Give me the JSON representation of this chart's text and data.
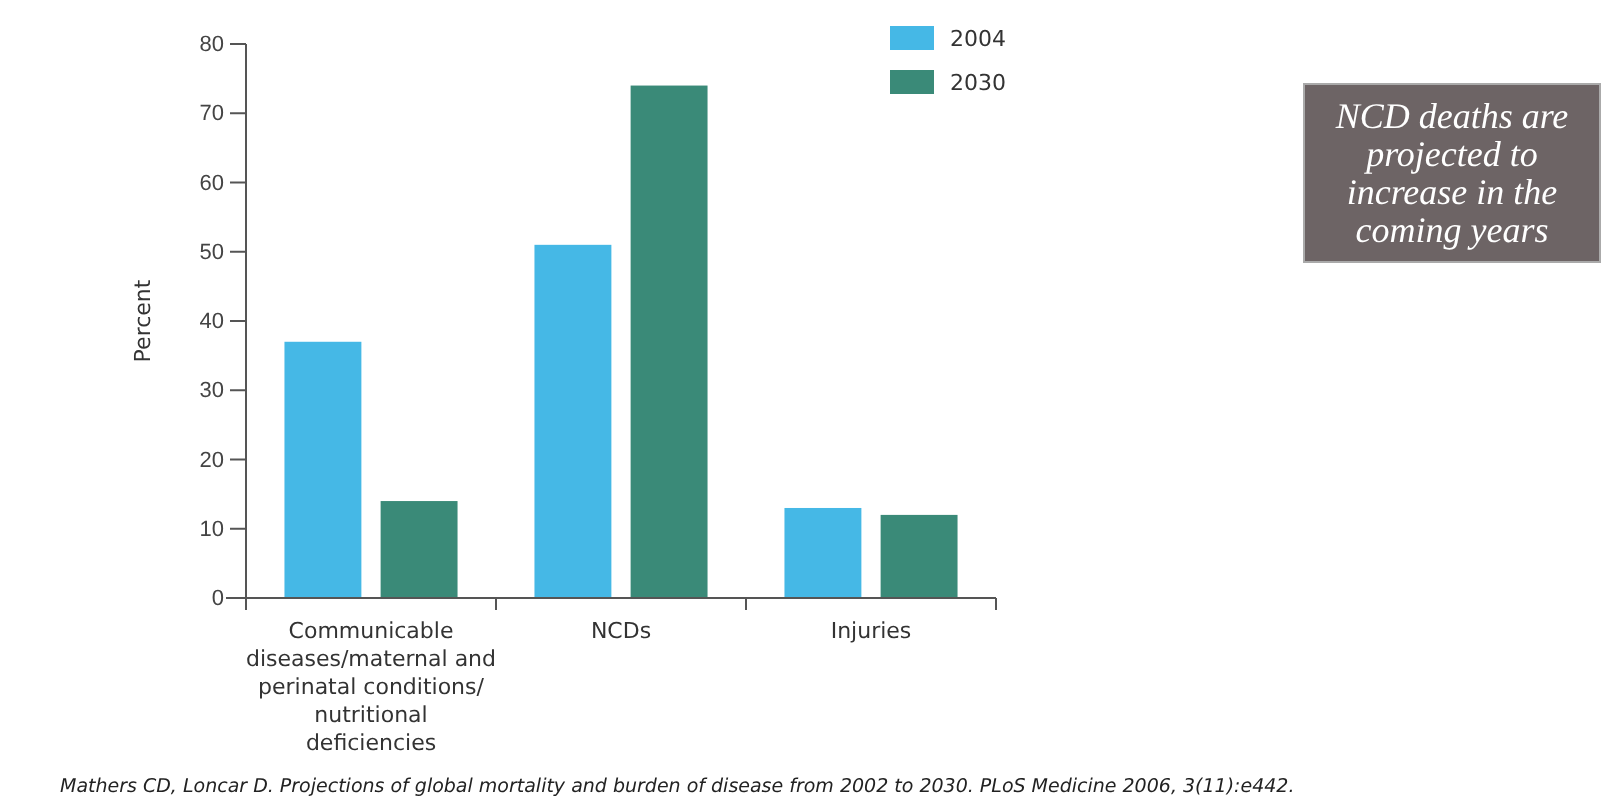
{
  "chart_data": {
    "type": "bar",
    "categories": [
      "Communicable diseases/maternal and perinatal conditions/ nutritional deficiencies",
      "NCDs",
      "Injuries"
    ],
    "series": [
      {
        "name": "2004",
        "color": "#45b8e6",
        "values": [
          37,
          51,
          13
        ]
      },
      {
        "name": "2030",
        "color": "#3a8a78",
        "values": [
          14,
          74,
          12
        ]
      }
    ],
    "ylabel": "Percent",
    "ylim": [
      0,
      80
    ],
    "yticks": [
      0,
      10,
      20,
      30,
      40,
      50,
      60,
      70,
      80
    ],
    "grid": false,
    "legend": "top right",
    "annotations": [
      "NCD deaths are projected to increase in the coming years",
      "Mathers CD, Loncar D. Projections of global mortality and burden of disease from 2002 to 2030. PLoS Medicine 2006, 3(11):e442."
    ]
  }
}
